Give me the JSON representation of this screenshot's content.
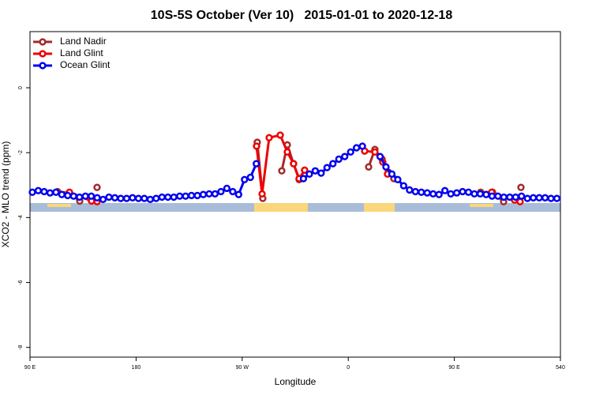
{
  "chart_data": {
    "type": "line",
    "title": "10S-5S October (Ver 10)   2015-01-01 to 2020-12-18",
    "x_label": "Longitude",
    "y_label": "XCO2 - MLO trend (ppm)",
    "xlim": [
      90,
      540
    ],
    "ylim": [
      -8.3,
      1.73
    ],
    "xticks": [
      {
        "value": 90,
        "label": "90 E"
      },
      180,
      {
        "value": 270,
        "label": "90 W"
      },
      {
        "value": 360,
        "label": "0"
      },
      {
        "value": 450,
        "label": "90 E"
      },
      540
    ],
    "yticks": [
      0,
      -2,
      -4,
      -6,
      -8
    ],
    "legend": "top-left",
    "series": [
      {
        "name": "Land Nadir",
        "color": "#a52a2a",
        "x": [
          113.4,
          123.5,
          132.2,
          140,
          146.9,
          280,
          282.8,
          287.5,
          295,
          303.6,
          308.3,
          313.6,
          318.3,
          323,
          370,
          377.3,
          382.6,
          388.7,
          394,
          398.7,
          470,
          472.3,
          482.4,
          491.8,
          500,
          506.5
        ],
        "values": [
          -3.2,
          -3.24,
          -3.49,
          null,
          -3.07,
          null,
          -1.68,
          -3.41,
          null,
          -2.56,
          -1.76,
          -2.34,
          -2.83,
          -2.54,
          null,
          -2.44,
          -1.9,
          -2.2,
          -2.6,
          -2.8,
          null,
          -3.22,
          -3.22,
          -3.51,
          null,
          -3.07
        ]
      },
      {
        "name": "Land Glint",
        "color": "#ee0000",
        "x": [
          123.5,
          142.2,
          146.9,
          250,
          282.2,
          286.9,
          292.9,
          302.3,
          308.3,
          313.6,
          318.3,
          323,
          350,
          373.9,
          382.6,
          389.3,
          393.3,
          450,
          481.7,
          501.1,
          505.8
        ],
        "values": [
          -3.22,
          -3.49,
          -3.51,
          null,
          -1.8,
          -3.27,
          -1.54,
          -1.46,
          -1.98,
          -2.34,
          -2.8,
          -2.54,
          null,
          -1.95,
          -1.98,
          -2.29,
          -2.66,
          null,
          -3.22,
          -3.46,
          -3.51
        ]
      },
      {
        "name": "Ocean Glint",
        "color": "#0000ee",
        "x": [
          92,
          97,
          102,
          107,
          112,
          117,
          122,
          127,
          132,
          137,
          142,
          147,
          152,
          157,
          162,
          167,
          172,
          177,
          182,
          187,
          192,
          197,
          202,
          207,
          212,
          217,
          222,
          227,
          232,
          237,
          242,
          247,
          252,
          257,
          262,
          267,
          272,
          277,
          282,
          287,
          292,
          297,
          302,
          307,
          312,
          317,
          322,
          327,
          332,
          337,
          342,
          347,
          352,
          357,
          362,
          367,
          372,
          377,
          382,
          387,
          392,
          397,
          402,
          407,
          412,
          417,
          422,
          427,
          432,
          437,
          442,
          447,
          452,
          457,
          462,
          467,
          472,
          477,
          482,
          487,
          492,
          497,
          502,
          507,
          512,
          517,
          522,
          527,
          532,
          537
        ],
        "values": [
          -3.22,
          -3.17,
          -3.2,
          -3.24,
          -3.22,
          -3.29,
          -3.32,
          -3.34,
          -3.37,
          -3.34,
          -3.34,
          -3.39,
          -3.44,
          -3.37,
          -3.39,
          -3.41,
          -3.41,
          -3.39,
          -3.41,
          -3.41,
          -3.44,
          -3.41,
          -3.37,
          -3.37,
          -3.37,
          -3.34,
          -3.34,
          -3.32,
          -3.32,
          -3.29,
          -3.27,
          -3.27,
          -3.2,
          -3.1,
          -3.2,
          -3.29,
          -2.83,
          -2.76,
          -2.34,
          null,
          null,
          null,
          null,
          null,
          null,
          null,
          -2.8,
          -2.66,
          -2.56,
          -2.63,
          -2.46,
          -2.34,
          -2.2,
          -2.12,
          -1.98,
          -1.85,
          -1.8,
          null,
          null,
          -2.12,
          -2.44,
          -2.66,
          -2.83,
          -3.02,
          -3.15,
          -3.2,
          -3.22,
          -3.24,
          -3.27,
          -3.29,
          -3.17,
          -3.27,
          -3.24,
          -3.2,
          -3.22,
          -3.27,
          -3.27,
          -3.29,
          -3.34,
          -3.34,
          -3.37,
          -3.37,
          -3.37,
          -3.34,
          -3.41,
          -3.39,
          -3.39,
          -3.39,
          -3.41,
          -3.41
        ]
      }
    ]
  }
}
